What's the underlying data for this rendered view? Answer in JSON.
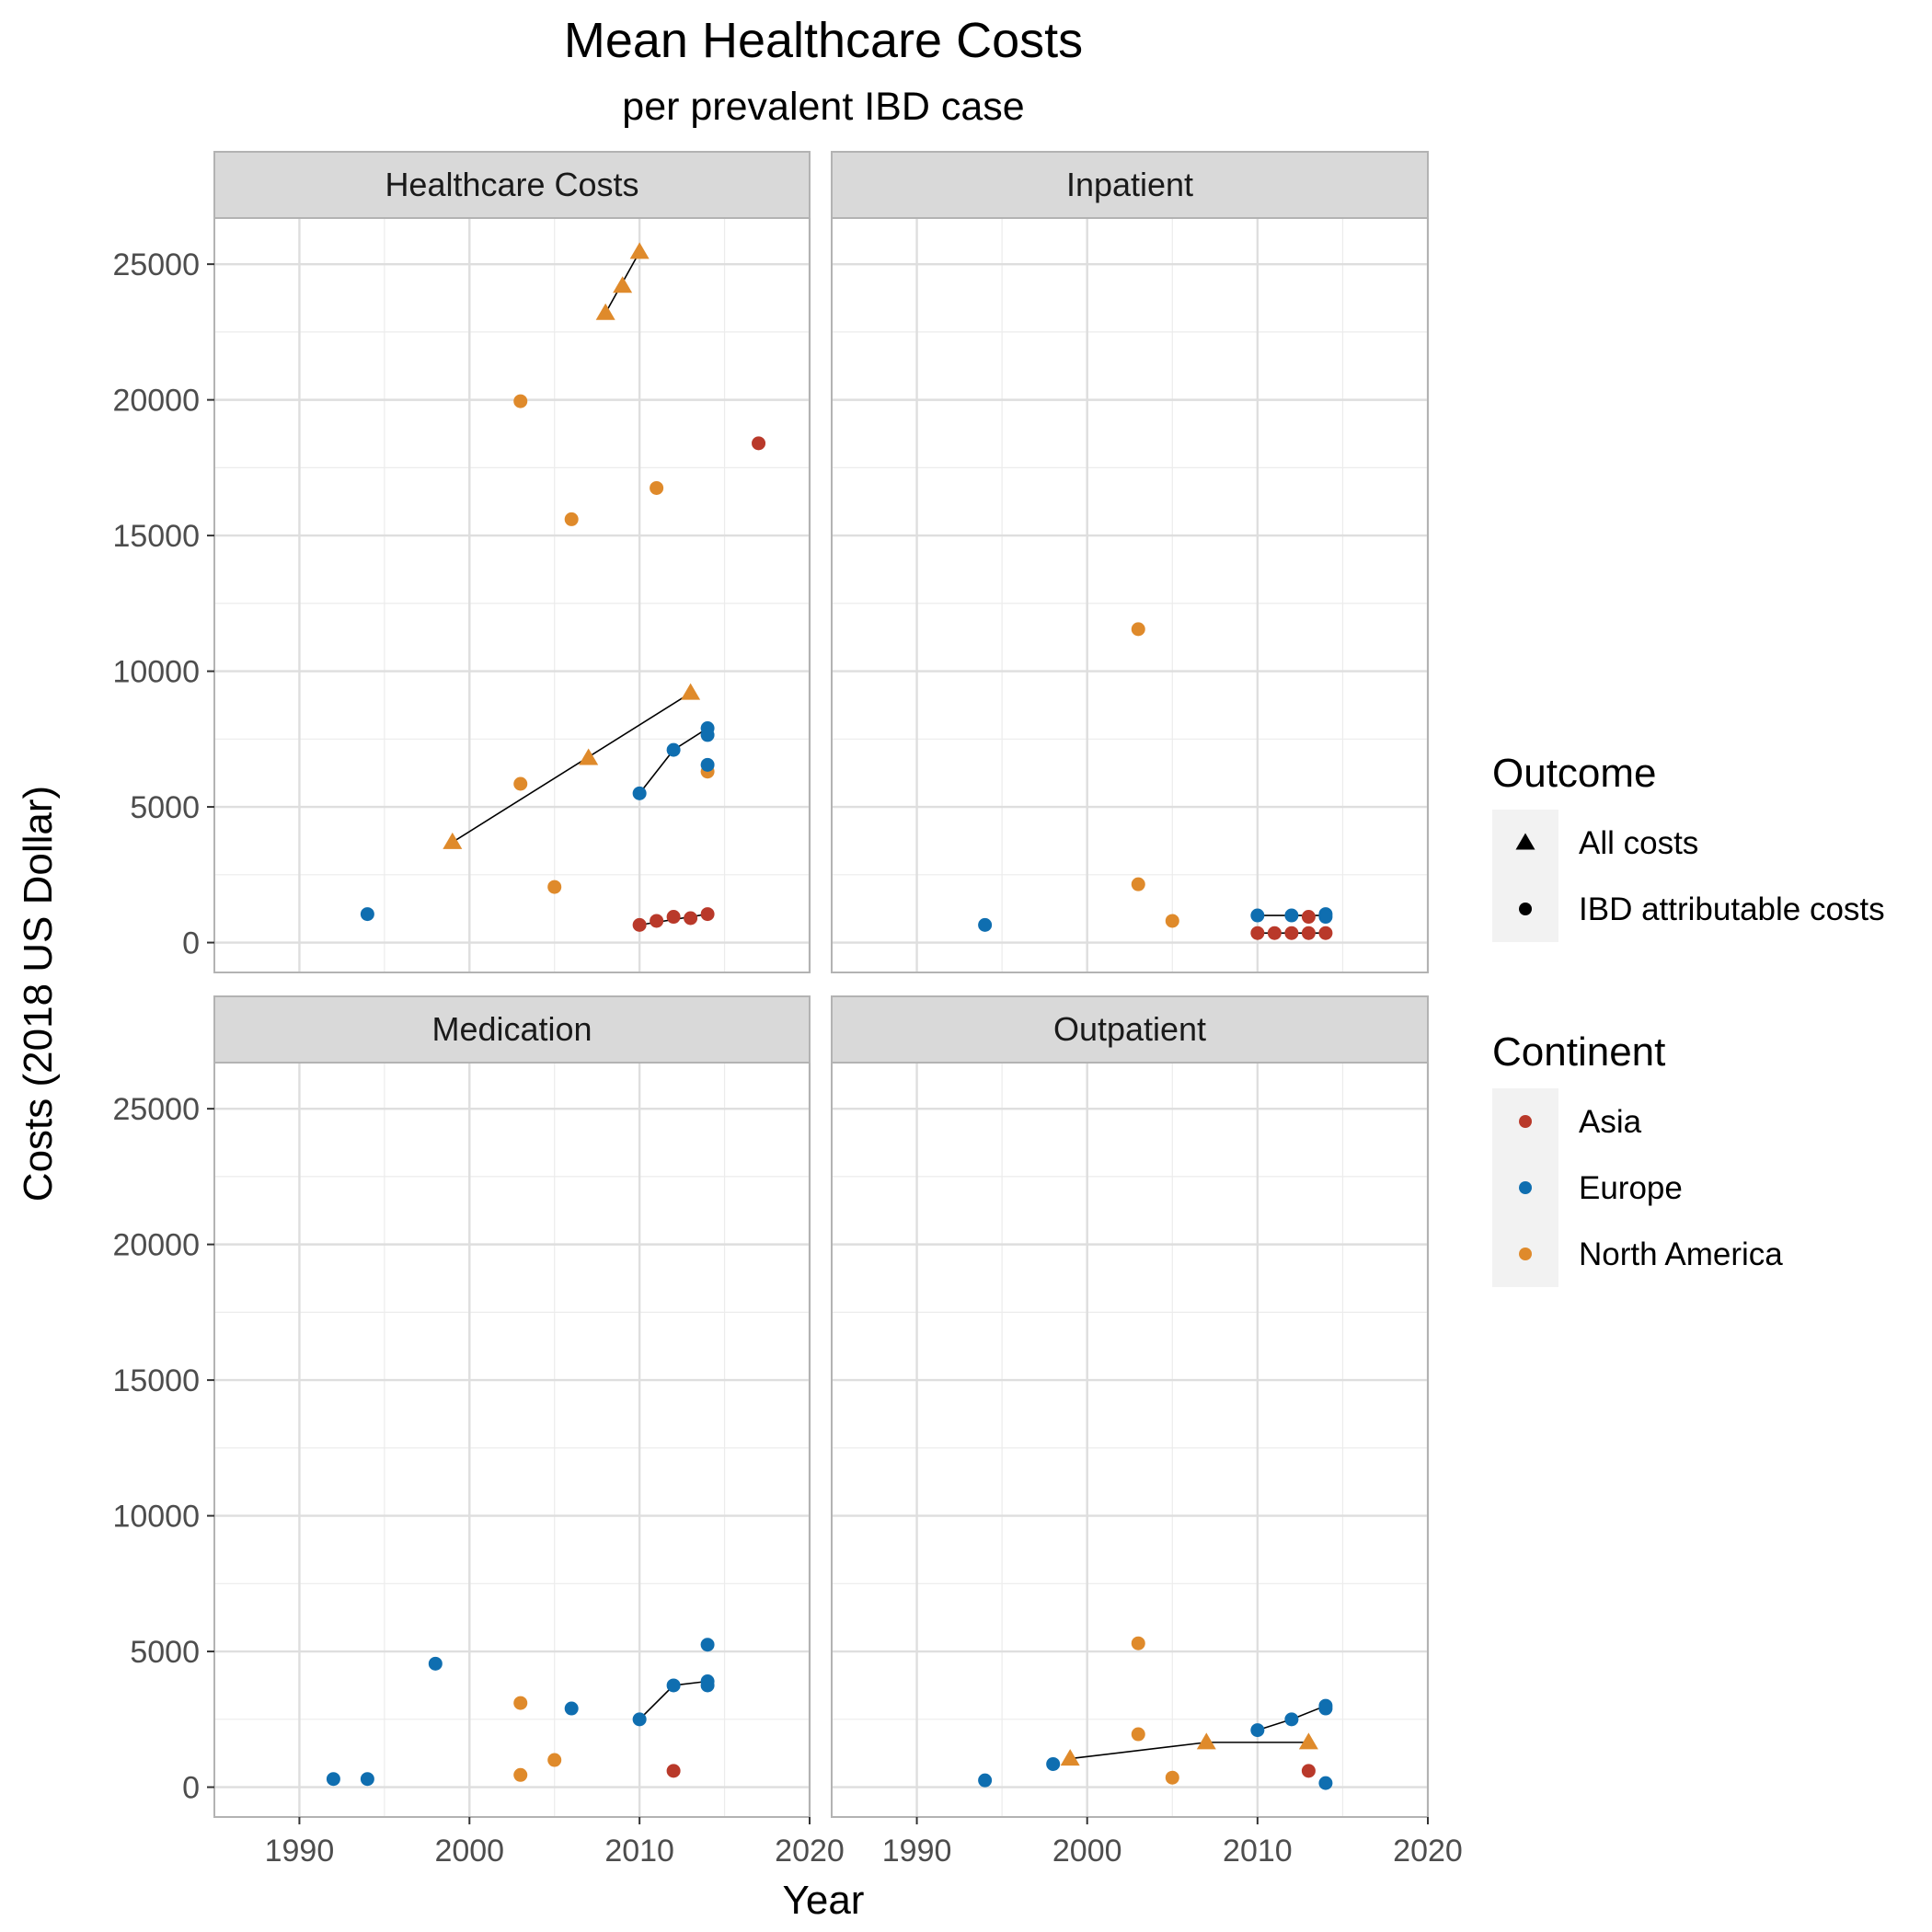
{
  "chart_data": {
    "type": "scatter",
    "title": "Mean Healthcare Costs",
    "subtitle": "per prevalent IBD case",
    "xlabel": "Year",
    "ylabel": "Costs (2018 US Dollar)",
    "xlim": [
      1985,
      2020
    ],
    "ylim": [
      -1100,
      26700
    ],
    "x_ticks": [
      1990,
      2000,
      2010,
      2020
    ],
    "y_ticks": [
      0,
      5000,
      10000,
      15000,
      20000,
      25000
    ],
    "grid": true,
    "colors": {
      "Asia": "#b9392a",
      "Europe": "#0f6eb0",
      "North America": "#df8a2b",
      "panel_grid": "#dedede",
      "strip_background": "#d9d9d9",
      "panel_border": "#b3b3b3"
    },
    "legends": [
      {
        "title": "Outcome",
        "entries": [
          {
            "label": "All costs",
            "shape": "triangle"
          },
          {
            "label": "IBD attributable costs",
            "shape": "circle"
          }
        ]
      },
      {
        "title": "Continent",
        "entries": [
          {
            "label": "Asia",
            "shape": "circle"
          },
          {
            "label": "Europe",
            "shape": "circle"
          },
          {
            "label": "North America",
            "shape": "circle"
          }
        ]
      }
    ],
    "legend_position": "right",
    "panels": [
      {
        "name": "Healthcare Costs",
        "points": [
          {
            "x": 1994,
            "y": 1050,
            "continent": "Europe",
            "outcome": "IBD attributable costs"
          },
          {
            "x": 2003,
            "y": 19950,
            "continent": "North America",
            "outcome": "IBD attributable costs"
          },
          {
            "x": 2006,
            "y": 15600,
            "continent": "North America",
            "outcome": "IBD attributable costs"
          },
          {
            "x": 2011,
            "y": 16750,
            "continent": "North America",
            "outcome": "IBD attributable costs"
          },
          {
            "x": 2017,
            "y": 18400,
            "continent": "Asia",
            "outcome": "IBD attributable costs"
          },
          {
            "x": 2003,
            "y": 5850,
            "continent": "North America",
            "outcome": "IBD attributable costs"
          },
          {
            "x": 2005,
            "y": 2050,
            "continent": "North America",
            "outcome": "IBD attributable costs"
          },
          {
            "x": 2014,
            "y": 6300,
            "continent": "North America",
            "outcome": "IBD attributable costs"
          },
          {
            "x": 2014,
            "y": 6550,
            "continent": "Europe",
            "outcome": "IBD attributable costs"
          },
          {
            "x": 2010,
            "y": 5500,
            "continent": "Europe",
            "outcome": "IBD attributable costs"
          },
          {
            "x": 2012,
            "y": 7100,
            "continent": "Europe",
            "outcome": "IBD attributable costs"
          },
          {
            "x": 2014,
            "y": 7900,
            "continent": "Europe",
            "outcome": "IBD attributable costs"
          },
          {
            "x": 2014,
            "y": 7650,
            "continent": "Europe",
            "outcome": "IBD attributable costs"
          },
          {
            "x": 2010,
            "y": 650,
            "continent": "Asia",
            "outcome": "IBD attributable costs"
          },
          {
            "x": 2011,
            "y": 800,
            "continent": "Asia",
            "outcome": "IBD attributable costs"
          },
          {
            "x": 2012,
            "y": 950,
            "continent": "Asia",
            "outcome": "IBD attributable costs"
          },
          {
            "x": 2013,
            "y": 900,
            "continent": "Asia",
            "outcome": "IBD attributable costs"
          },
          {
            "x": 2014,
            "y": 1050,
            "continent": "Asia",
            "outcome": "IBD attributable costs"
          },
          {
            "x": 2008,
            "y": 23200,
            "continent": "North America",
            "outcome": "All costs"
          },
          {
            "x": 2009,
            "y": 24200,
            "continent": "North America",
            "outcome": "All costs"
          },
          {
            "x": 2010,
            "y": 25450,
            "continent": "North America",
            "outcome": "All costs"
          },
          {
            "x": 1999,
            "y": 3700,
            "continent": "North America",
            "outcome": "All costs"
          },
          {
            "x": 2007,
            "y": 6800,
            "continent": "North America",
            "outcome": "All costs"
          },
          {
            "x": 2013,
            "y": 9200,
            "continent": "North America",
            "outcome": "All costs"
          }
        ],
        "lines": [
          [
            [
              2008,
              23200
            ],
            [
              2010,
              25450
            ]
          ],
          [
            [
              1999,
              3700
            ],
            [
              2013,
              9200
            ]
          ],
          [
            [
              2010,
              5500
            ],
            [
              2012,
              7100
            ],
            [
              2014,
              7900
            ]
          ],
          [
            [
              2010,
              650
            ],
            [
              2014,
              1050
            ]
          ]
        ]
      },
      {
        "name": "Inpatient",
        "points": [
          {
            "x": 1994,
            "y": 650,
            "continent": "Europe",
            "outcome": "IBD attributable costs"
          },
          {
            "x": 2003,
            "y": 11550,
            "continent": "North America",
            "outcome": "IBD attributable costs"
          },
          {
            "x": 2003,
            "y": 2150,
            "continent": "North America",
            "outcome": "IBD attributable costs"
          },
          {
            "x": 2005,
            "y": 800,
            "continent": "North America",
            "outcome": "IBD attributable costs"
          },
          {
            "x": 2010,
            "y": 1000,
            "continent": "Europe",
            "outcome": "IBD attributable costs"
          },
          {
            "x": 2012,
            "y": 1000,
            "continent": "Europe",
            "outcome": "IBD attributable costs"
          },
          {
            "x": 2014,
            "y": 1050,
            "continent": "Europe",
            "outcome": "IBD attributable costs"
          },
          {
            "x": 2014,
            "y": 950,
            "continent": "Europe",
            "outcome": "IBD attributable costs"
          },
          {
            "x": 2013,
            "y": 950,
            "continent": "Asia",
            "outcome": "IBD attributable costs"
          },
          {
            "x": 2010,
            "y": 350,
            "continent": "Asia",
            "outcome": "IBD attributable costs"
          },
          {
            "x": 2011,
            "y": 350,
            "continent": "Asia",
            "outcome": "IBD attributable costs"
          },
          {
            "x": 2012,
            "y": 350,
            "continent": "Asia",
            "outcome": "IBD attributable costs"
          },
          {
            "x": 2013,
            "y": 350,
            "continent": "Asia",
            "outcome": "IBD attributable costs"
          },
          {
            "x": 2014,
            "y": 350,
            "continent": "Asia",
            "outcome": "IBD attributable costs"
          }
        ],
        "lines": [
          [
            [
              2010,
              1000
            ],
            [
              2014,
              1000
            ]
          ],
          [
            [
              2010,
              350
            ],
            [
              2014,
              350
            ]
          ]
        ]
      },
      {
        "name": "Medication",
        "points": [
          {
            "x": 1992,
            "y": 300,
            "continent": "Europe",
            "outcome": "IBD attributable costs"
          },
          {
            "x": 1994,
            "y": 300,
            "continent": "Europe",
            "outcome": "IBD attributable costs"
          },
          {
            "x": 1998,
            "y": 4550,
            "continent": "Europe",
            "outcome": "IBD attributable costs"
          },
          {
            "x": 2003,
            "y": 3100,
            "continent": "North America",
            "outcome": "IBD attributable costs"
          },
          {
            "x": 2003,
            "y": 450,
            "continent": "North America",
            "outcome": "IBD attributable costs"
          },
          {
            "x": 2005,
            "y": 1000,
            "continent": "North America",
            "outcome": "IBD attributable costs"
          },
          {
            "x": 2006,
            "y": 2900,
            "continent": "Europe",
            "outcome": "IBD attributable costs"
          },
          {
            "x": 2010,
            "y": 2500,
            "continent": "Europe",
            "outcome": "IBD attributable costs"
          },
          {
            "x": 2012,
            "y": 3750,
            "continent": "Europe",
            "outcome": "IBD attributable costs"
          },
          {
            "x": 2014,
            "y": 3900,
            "continent": "Europe",
            "outcome": "IBD attributable costs"
          },
          {
            "x": 2014,
            "y": 3750,
            "continent": "Europe",
            "outcome": "IBD attributable costs"
          },
          {
            "x": 2014,
            "y": 5250,
            "continent": "Europe",
            "outcome": "IBD attributable costs"
          },
          {
            "x": 2012,
            "y": 600,
            "continent": "Asia",
            "outcome": "IBD attributable costs"
          }
        ],
        "lines": [
          [
            [
              2010,
              2500
            ],
            [
              2012,
              3750
            ],
            [
              2014,
              3900
            ]
          ]
        ]
      },
      {
        "name": "Outpatient",
        "points": [
          {
            "x": 1994,
            "y": 250,
            "continent": "Europe",
            "outcome": "IBD attributable costs"
          },
          {
            "x": 1998,
            "y": 850,
            "continent": "Europe",
            "outcome": "IBD attributable costs"
          },
          {
            "x": 2003,
            "y": 5300,
            "continent": "North America",
            "outcome": "IBD attributable costs"
          },
          {
            "x": 2003,
            "y": 1950,
            "continent": "North America",
            "outcome": "IBD attributable costs"
          },
          {
            "x": 2005,
            "y": 350,
            "continent": "North America",
            "outcome": "IBD attributable costs"
          },
          {
            "x": 2010,
            "y": 2100,
            "continent": "Europe",
            "outcome": "IBD attributable costs"
          },
          {
            "x": 2012,
            "y": 2500,
            "continent": "Europe",
            "outcome": "IBD attributable costs"
          },
          {
            "x": 2014,
            "y": 3000,
            "continent": "Europe",
            "outcome": "IBD attributable costs"
          },
          {
            "x": 2014,
            "y": 2900,
            "continent": "Europe",
            "outcome": "IBD attributable costs"
          },
          {
            "x": 2013,
            "y": 600,
            "continent": "Asia",
            "outcome": "IBD attributable costs"
          },
          {
            "x": 2014,
            "y": 150,
            "continent": "Europe",
            "outcome": "IBD attributable costs"
          },
          {
            "x": 1999,
            "y": 1050,
            "continent": "North America",
            "outcome": "All costs"
          },
          {
            "x": 2007,
            "y": 1650,
            "continent": "North America",
            "outcome": "All costs"
          },
          {
            "x": 2013,
            "y": 1650,
            "continent": "North America",
            "outcome": "All costs"
          }
        ],
        "lines": [
          [
            [
              1999,
              1050
            ],
            [
              2007,
              1650
            ],
            [
              2013,
              1650
            ]
          ],
          [
            [
              2010,
              2100
            ],
            [
              2012,
              2500
            ],
            [
              2014,
              3000
            ]
          ]
        ]
      }
    ]
  }
}
